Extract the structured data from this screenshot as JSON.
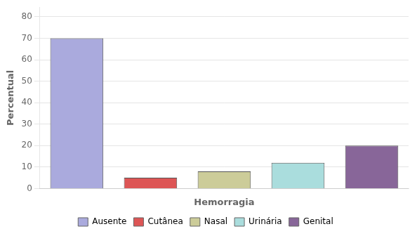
{
  "chart_data": {
    "type": "bar",
    "categories": [
      "Ausente",
      "Cutânea",
      "Nasal",
      "Urinária",
      "Genital"
    ],
    "values": [
      70,
      5,
      8,
      12,
      20
    ],
    "colors": [
      "#aaaadd",
      "#dd5555",
      "#cccc99",
      "#aadddd",
      "#886699"
    ],
    "xlabel": "Hemorragia",
    "ylabel": "Percentual",
    "ylim": [
      0,
      84.5
    ],
    "yticks": [
      0,
      10,
      20,
      30,
      40,
      50,
      60,
      70,
      80
    ],
    "grid": true,
    "legend": "bottom",
    "tick_labels": "y"
  }
}
